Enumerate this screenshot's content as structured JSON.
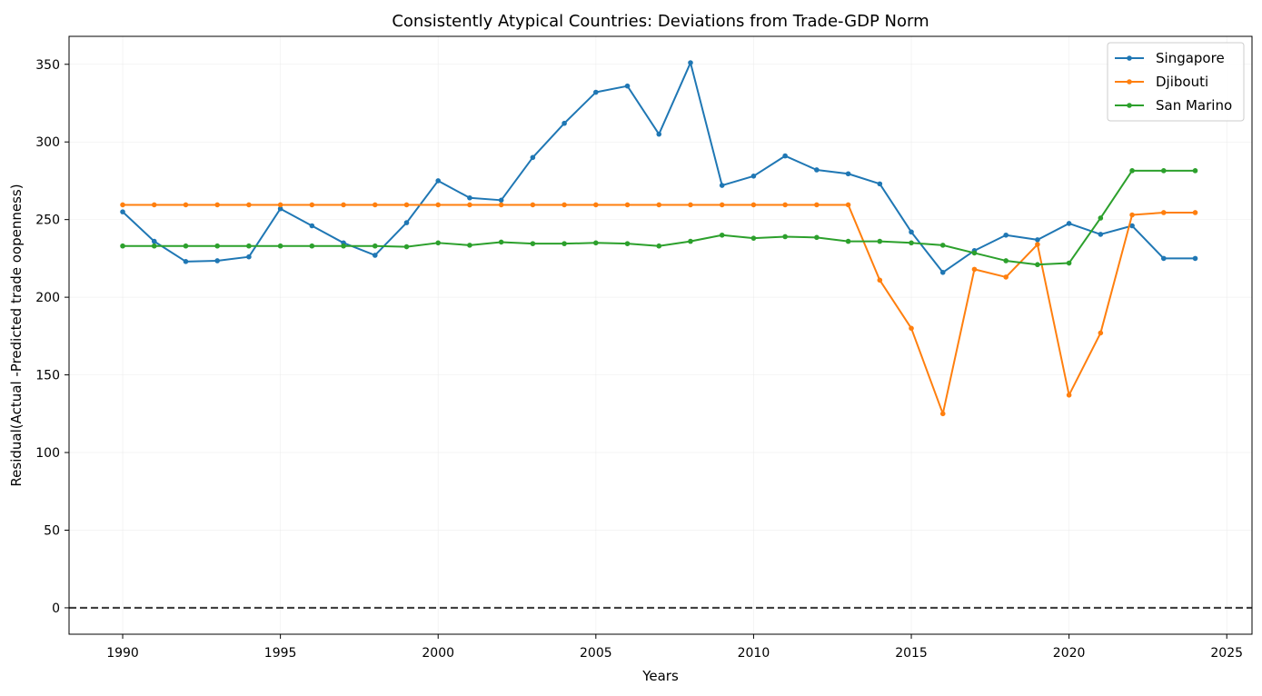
{
  "chart_data": {
    "type": "line",
    "title": "Consistently Atypical Countries: Deviations from Trade-GDP Norm",
    "xlabel": "Years",
    "ylabel": "Residual(Actual -Predicted trade oopenness)",
    "xlim": [
      1988.3,
      2025.8
    ],
    "ylim": [
      -17,
      368
    ],
    "xticks": [
      1990,
      1995,
      2000,
      2005,
      2010,
      2015,
      2020,
      2025
    ],
    "yticks": [
      0,
      50,
      100,
      150,
      200,
      250,
      300,
      350
    ],
    "grid": true,
    "reference_line": {
      "y": 0,
      "style": "dashed",
      "color": "#404040"
    },
    "legend_position": "top-right",
    "x": [
      1990,
      1991,
      1992,
      1993,
      1994,
      1995,
      1996,
      1997,
      1998,
      1999,
      2000,
      2001,
      2002,
      2003,
      2004,
      2005,
      2006,
      2007,
      2008,
      2009,
      2010,
      2011,
      2012,
      2013,
      2014,
      2015,
      2016,
      2017,
      2018,
      2019,
      2020,
      2021,
      2022,
      2023,
      2024
    ],
    "series": [
      {
        "name": "Singapore",
        "color": "#1f77b4",
        "values": [
          255,
          236,
          223,
          223.5,
          226,
          257,
          246,
          235,
          227,
          248,
          275,
          264,
          262.5,
          290,
          312,
          332,
          336,
          305,
          351,
          272,
          278,
          291,
          282,
          279.5,
          273,
          242,
          216,
          230,
          240,
          237,
          247.5,
          240.5,
          246,
          225,
          225
        ]
      },
      {
        "name": "Djibouti",
        "color": "#ff7f0e",
        "values": [
          259.5,
          259.5,
          259.5,
          259.5,
          259.5,
          259.5,
          259.5,
          259.5,
          259.5,
          259.5,
          259.5,
          259.5,
          259.5,
          259.5,
          259.5,
          259.5,
          259.5,
          259.5,
          259.5,
          259.5,
          259.5,
          259.5,
          259.5,
          259.5,
          211,
          180,
          125,
          218,
          213,
          234,
          137,
          177,
          253,
          254.5,
          254.5
        ]
      },
      {
        "name": "San Marino",
        "color": "#2ca02c",
        "values": [
          233,
          233,
          233,
          233,
          233,
          233,
          233,
          233,
          233,
          232.5,
          235,
          233.5,
          235.5,
          234.5,
          234.5,
          235,
          234.5,
          233,
          236,
          240,
          238,
          239,
          238.5,
          236,
          236,
          235,
          233.5,
          228.5,
          223.5,
          221,
          222,
          251,
          281.5,
          281.5,
          281.5
        ]
      }
    ]
  }
}
